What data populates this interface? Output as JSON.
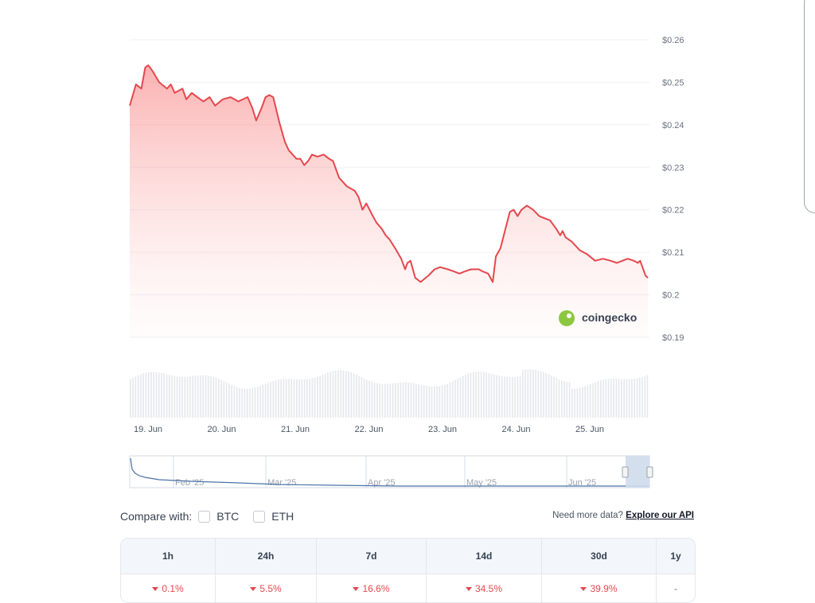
{
  "chart_data": {
    "type": "area",
    "title": "",
    "xlabel": "",
    "ylabel": "",
    "y_axis": {
      "ticks": [
        "$0.26",
        "$0.25",
        "$0.24",
        "$0.23",
        "$0.22",
        "$0.21",
        "$0.2",
        "$0.19"
      ],
      "ylim": [
        0.19,
        0.26
      ],
      "position": "right"
    },
    "x_axis": {
      "ticks": [
        "19. Jun",
        "20. Jun",
        "21. Jun",
        "22. Jun",
        "23. Jun",
        "24. Jun",
        "25. Jun"
      ]
    },
    "series": [
      {
        "x_days": [
          0,
          0.08,
          0.15,
          0.2,
          0.24,
          0.3,
          0.38,
          0.48,
          0.53,
          0.58,
          0.68,
          0.73,
          0.8,
          0.87,
          0.95,
          1.03,
          1.1,
          1.2,
          1.3,
          1.4,
          1.52,
          1.58,
          1.63,
          1.7,
          1.75,
          1.8,
          1.85,
          1.93,
          2.0,
          2.05,
          2.1,
          2.15,
          2.2,
          2.25,
          2.3,
          2.35,
          2.42,
          2.5,
          2.57,
          2.62,
          2.7,
          2.8,
          2.85,
          2.9,
          2.95,
          3.0,
          3.05,
          3.12,
          3.18,
          3.25,
          3.3,
          3.35,
          3.42,
          3.5,
          3.55,
          3.58,
          3.62,
          3.68,
          3.75,
          3.85,
          3.93,
          4.0,
          4.1,
          4.18,
          4.25,
          4.32,
          4.4,
          4.5,
          4.55,
          4.62,
          4.68,
          4.72,
          4.78,
          4.85,
          4.9,
          4.95,
          5.0,
          5.05,
          5.12,
          5.2,
          5.28,
          5.35,
          5.42,
          5.5,
          5.55,
          5.58,
          5.62,
          5.7,
          5.8,
          5.9,
          6.0,
          6.1,
          6.2,
          6.28,
          6.35,
          6.42,
          6.5,
          6.55,
          6.58,
          6.62,
          6.65,
          6.68
        ],
        "values": [
          0.2445,
          0.2495,
          0.2485,
          0.2535,
          0.254,
          0.2525,
          0.25,
          0.2485,
          0.2495,
          0.2475,
          0.2485,
          0.246,
          0.2475,
          0.2465,
          0.2455,
          0.2465,
          0.2445,
          0.246,
          0.2465,
          0.2455,
          0.2465,
          0.244,
          0.241,
          0.244,
          0.2465,
          0.247,
          0.2465,
          0.2405,
          0.236,
          0.234,
          0.233,
          0.232,
          0.232,
          0.2305,
          0.2315,
          0.233,
          0.2325,
          0.233,
          0.232,
          0.2315,
          0.2275,
          0.2255,
          0.225,
          0.2245,
          0.223,
          0.22,
          0.2215,
          0.219,
          0.217,
          0.2155,
          0.214,
          0.213,
          0.211,
          0.2085,
          0.206,
          0.2075,
          0.208,
          0.204,
          0.203,
          0.2045,
          0.206,
          0.2065,
          0.206,
          0.2055,
          0.205,
          0.2055,
          0.206,
          0.206,
          0.2055,
          0.205,
          0.203,
          0.209,
          0.211,
          0.216,
          0.2195,
          0.22,
          0.2185,
          0.22,
          0.221,
          0.22,
          0.2185,
          0.218,
          0.2175,
          0.2155,
          0.214,
          0.215,
          0.2135,
          0.2125,
          0.2105,
          0.2095,
          0.208,
          0.2085,
          0.208,
          0.2075,
          0.208,
          0.2085,
          0.208,
          0.2075,
          0.208,
          0.206,
          0.2045,
          0.204
        ]
      }
    ],
    "navigator_ticks": [
      "Feb '25",
      "Mar '25",
      "Apr '25",
      "May '25",
      "Jun '25"
    ],
    "watermark": "coingecko",
    "line_color": "#e5484d"
  },
  "compare": {
    "label": "Compare with:",
    "options": [
      "BTC",
      "ETH"
    ]
  },
  "api": {
    "text": "Need more data?",
    "link": "Explore our API"
  },
  "performance": {
    "headers": [
      "1h",
      "24h",
      "7d",
      "14d",
      "30d",
      "1y"
    ],
    "values": [
      "0.1%",
      "5.5%",
      "16.6%",
      "34.5%",
      "39.9%",
      "-"
    ]
  }
}
